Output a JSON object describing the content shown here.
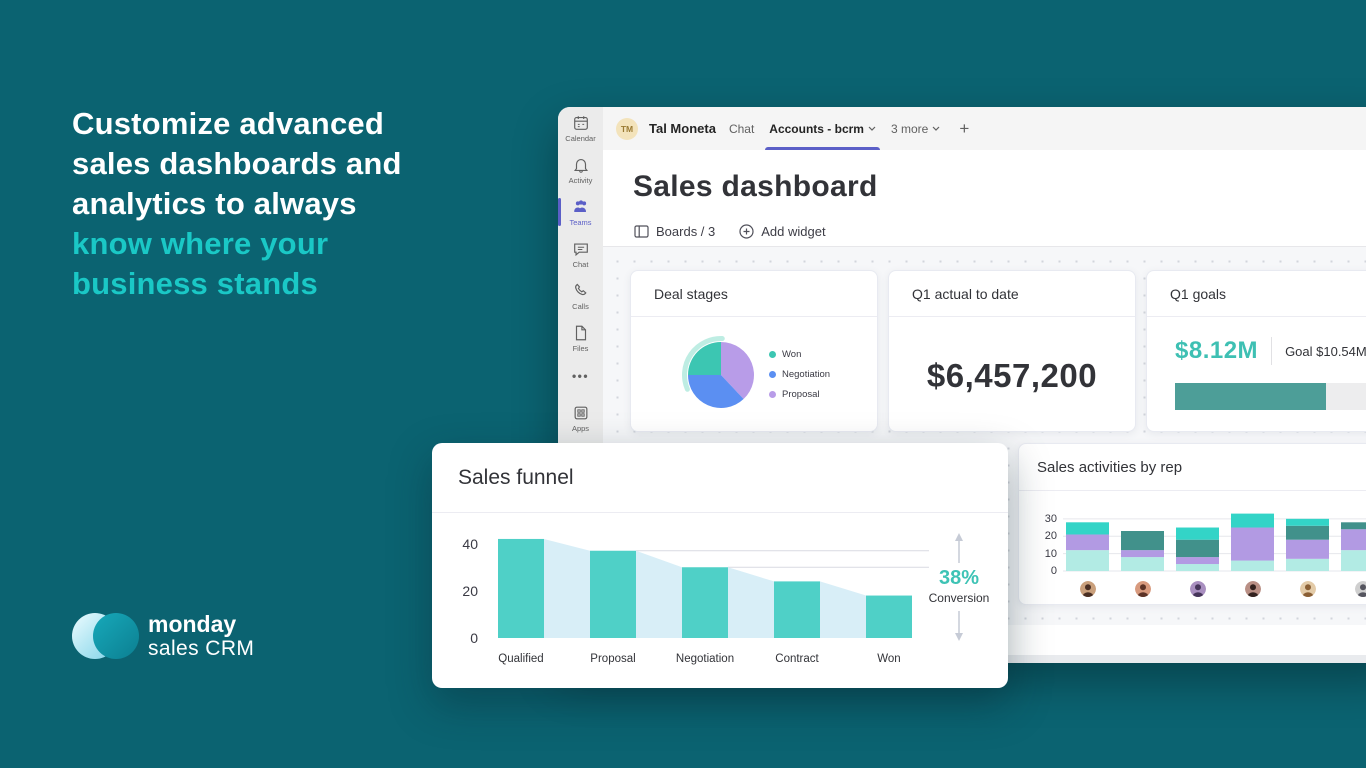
{
  "palette": {
    "background": "#0b6371",
    "accent": "#1ac8c6",
    "teams_purple": "#5b5fc7",
    "text_dark": "#323338"
  },
  "headline": {
    "white_lines": [
      "Customize advanced",
      "sales dashboards and",
      "analytics to always"
    ],
    "accent_lines": [
      "know where your",
      "business stands"
    ]
  },
  "logo": {
    "brand": "monday",
    "product": "sales CRM"
  },
  "app": {
    "topbar": {
      "avatar_initials": "TM",
      "user_name": "Tal Moneta",
      "tab_chat": "Chat",
      "tab_active": "Accounts - bcrm",
      "tab_more": "3 more",
      "new_tab": "+"
    },
    "sidebar": {
      "items": [
        {
          "label": "Calendar"
        },
        {
          "label": "Activity"
        },
        {
          "label": "Teams",
          "active": true
        },
        {
          "label": "Chat"
        },
        {
          "label": "Calls"
        },
        {
          "label": "Files"
        },
        {
          "label": ""
        },
        {
          "label": "Apps"
        }
      ]
    },
    "page": {
      "title": "Sales dashboard",
      "boards_label": "Boards / 3",
      "add_widget_label": "Add widget"
    }
  },
  "widgets": {
    "deal_stages": {
      "title": "Deal stages"
    },
    "q1_actual": {
      "title": "Q1 actual to date",
      "value": "$6,457,200"
    },
    "q1_goals": {
      "title": "Q1 goals",
      "value": "$8.12M",
      "value_color": "#3ec0b3",
      "goal_label": "Goal $10.54M",
      "progress_pct": 77,
      "fill_color": "#4d9e98",
      "track_color": "#ededee"
    },
    "sales_funnel": {
      "title": "Sales funnel"
    },
    "activities": {
      "title": "Sales activities by rep"
    }
  },
  "chart_data": [
    {
      "id": "deal-stages-pie",
      "type": "pie",
      "title": "Deal stages",
      "slices": [
        {
          "label": "Proposal",
          "pct": 38,
          "color": "#b89ce8"
        },
        {
          "label": "Negotiation",
          "pct": 37,
          "color": "#5b8ff2"
        },
        {
          "label": "Won",
          "pct": 25,
          "color": "#3cc6b2"
        }
      ],
      "legend": [
        {
          "label": "Won",
          "color": "#3cc6b2"
        },
        {
          "label": "Negotiation",
          "color": "#5b8ff2"
        },
        {
          "label": "Proposal",
          "color": "#b89ce8"
        }
      ],
      "highlight": {
        "color": "#aee9dc",
        "from_deg": 247,
        "to_deg": 362
      }
    },
    {
      "id": "sales-funnel",
      "type": "bar",
      "title": "Sales funnel",
      "categories": [
        "Qualified",
        "Proposal",
        "Negotiation",
        "Contract",
        "Won"
      ],
      "values": [
        42,
        37,
        30,
        24,
        18
      ],
      "yticks": [
        40,
        20,
        0
      ],
      "ylim": [
        0,
        53
      ],
      "bar_color": "#4fd0c7",
      "funnel_fill": "#d8eef7",
      "ref_line_color": "#d9dae2",
      "arrow_color": "#c6cbd6",
      "annotation": {
        "value": "38%",
        "label": "Conversion",
        "color": "#3ec3b5"
      }
    },
    {
      "id": "activities-stacked",
      "type": "bar",
      "stacked": true,
      "title": "Sales activities by rep",
      "categories": [
        "rep-1",
        "rep-2",
        "rep-3",
        "rep-4",
        "rep-5",
        "rep-6"
      ],
      "series": [
        {
          "name": "series-1",
          "color": "#b2ebe4",
          "values": [
            12,
            8,
            4,
            6,
            7,
            12
          ]
        },
        {
          "name": "series-2",
          "color": "#b29ae3",
          "values": [
            9,
            4,
            4,
            19,
            11,
            12
          ]
        },
        {
          "name": "series-3",
          "color": "#41918b",
          "values": [
            0,
            11,
            10,
            0,
            8,
            4
          ]
        },
        {
          "name": "series-4",
          "color": "#33d4c7",
          "values": [
            7,
            0,
            7,
            8,
            4,
            0
          ]
        }
      ],
      "yticks": [
        30,
        20,
        10,
        0
      ],
      "ylim": [
        0,
        46
      ],
      "grid_color": "#e6e7ec",
      "avatars": [
        {
          "bg": "#caa07c",
          "fg": "#4a2f23"
        },
        {
          "bg": "#d89a7e",
          "fg": "#5c3327"
        },
        {
          "bg": "#a98fc0",
          "fg": "#46355a"
        },
        {
          "bg": "#b98f85",
          "fg": "#33221f"
        },
        {
          "bg": "#e3cba8",
          "fg": "#8a5f35"
        },
        {
          "bg": "#cfcfcf",
          "fg": "#55555f"
        }
      ]
    }
  ]
}
